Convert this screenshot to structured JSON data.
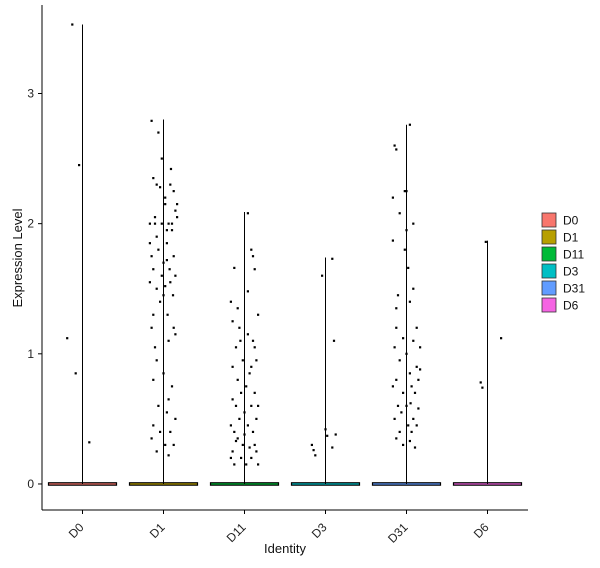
{
  "chart_data": {
    "type": "violin",
    "xlabel": "Identity",
    "ylabel": "Expression Level",
    "categories": [
      "D0",
      "D1",
      "D11",
      "D3",
      "D31",
      "D6"
    ],
    "yticks": [
      0,
      1,
      2,
      3
    ],
    "ylim": [
      -0.2,
      3.68
    ],
    "legend_position": "right",
    "legend": [
      {
        "label": "D0",
        "color": "#F8766D"
      },
      {
        "label": "D1",
        "color": "#B79F00"
      },
      {
        "label": "D11",
        "color": "#00BA38"
      },
      {
        "label": "D3",
        "color": "#00BFC4"
      },
      {
        "label": "D31",
        "color": "#619CFF"
      },
      {
        "label": "D6",
        "color": "#F564E3"
      }
    ],
    "series": [
      {
        "category": "D0",
        "max": 3.53,
        "points": [
          [
            -0.3,
            3.53
          ],
          [
            -0.1,
            2.45
          ],
          [
            -0.45,
            1.12
          ],
          [
            -0.2,
            0.85
          ],
          [
            0.2,
            0.32
          ]
        ]
      },
      {
        "category": "D1",
        "max": 2.8,
        "points": [
          [
            -0.35,
            2.79
          ],
          [
            -0.3,
            2.35
          ],
          [
            -0.2,
            2.3
          ],
          [
            -0.1,
            2.28
          ],
          [
            0.05,
            2.15
          ],
          [
            0.2,
            2.3
          ],
          [
            0.3,
            2.25
          ],
          [
            0.35,
            2.1
          ],
          [
            0.15,
            2.0
          ],
          [
            -0.05,
            2.0
          ],
          [
            -0.25,
            2.05
          ],
          [
            -0.4,
            2.0
          ],
          [
            0.4,
            2.05
          ],
          [
            0.25,
            1.95
          ],
          [
            0.1,
            1.85
          ],
          [
            -0.15,
            1.8
          ],
          [
            -0.3,
            1.65
          ],
          [
            0.0,
            1.7
          ],
          [
            0.18,
            1.65
          ],
          [
            0.35,
            1.6
          ],
          [
            -0.4,
            1.55
          ],
          [
            -0.2,
            1.5
          ],
          [
            0.05,
            1.52
          ],
          [
            0.28,
            1.45
          ],
          [
            -0.1,
            1.4
          ],
          [
            0.12,
            1.3
          ],
          [
            -0.35,
            1.2
          ],
          [
            0.3,
            1.2
          ],
          [
            -0.25,
            1.05
          ],
          [
            0.15,
            1.1
          ],
          [
            0.0,
            0.85
          ],
          [
            -0.3,
            0.8
          ],
          [
            0.25,
            0.75
          ],
          [
            -0.15,
            0.6
          ],
          [
            0.1,
            0.55
          ],
          [
            0.35,
            0.5
          ],
          [
            -0.3,
            0.45
          ],
          [
            -0.1,
            0.4
          ],
          [
            0.2,
            0.4
          ],
          [
            0.05,
            0.3
          ],
          [
            -0.35,
            0.35
          ],
          [
            0.3,
            0.3
          ],
          [
            -0.2,
            0.25
          ],
          [
            0.15,
            0.22
          ],
          [
            -0.05,
            2.5
          ],
          [
            0.22,
            2.42
          ],
          [
            -0.15,
            2.7
          ],
          [
            0.05,
            2.2
          ],
          [
            -0.25,
            2.0
          ],
          [
            0.4,
            2.15
          ],
          [
            0.1,
            1.72
          ],
          [
            -0.4,
            1.85
          ],
          [
            0.3,
            1.75
          ],
          [
            -0.05,
            1.6
          ],
          [
            0.2,
            1.55
          ],
          [
            -0.35,
            1.75
          ],
          [
            0.1,
            1.95
          ],
          [
            -0.2,
            1.9
          ],
          [
            0.25,
            2.0
          ],
          [
            0.0,
            1.45
          ],
          [
            -0.3,
            1.3
          ],
          [
            0.35,
            1.15
          ],
          [
            -0.2,
            0.95
          ],
          [
            0.15,
            0.65
          ]
        ]
      },
      {
        "category": "D11",
        "max": 2.09,
        "points": [
          [
            0.1,
            2.08
          ],
          [
            0.2,
            1.8
          ],
          [
            0.25,
            1.75
          ],
          [
            0.3,
            1.65
          ],
          [
            -0.3,
            1.66
          ],
          [
            -0.4,
            1.4
          ],
          [
            -0.2,
            1.35
          ],
          [
            -0.35,
            1.25
          ],
          [
            -0.15,
            1.2
          ],
          [
            0.4,
            1.3
          ],
          [
            0.1,
            1.15
          ],
          [
            0.25,
            1.1
          ],
          [
            0.3,
            1.05
          ],
          [
            -0.25,
            1.05
          ],
          [
            -0.05,
            0.95
          ],
          [
            0.35,
            0.95
          ],
          [
            -0.35,
            0.9
          ],
          [
            0.15,
            0.85
          ],
          [
            -0.2,
            0.8
          ],
          [
            0.05,
            0.75
          ],
          [
            -0.1,
            0.7
          ],
          [
            0.3,
            0.7
          ],
          [
            -0.35,
            0.65
          ],
          [
            0.2,
            0.6
          ],
          [
            -0.25,
            0.6
          ],
          [
            0.4,
            0.6
          ],
          [
            0.0,
            0.55
          ],
          [
            -0.15,
            0.5
          ],
          [
            0.35,
            0.5
          ],
          [
            -0.4,
            0.45
          ],
          [
            0.1,
            0.45
          ],
          [
            -0.3,
            0.4
          ],
          [
            0.25,
            0.4
          ],
          [
            0.0,
            0.38
          ],
          [
            -0.2,
            0.35
          ],
          [
            0.3,
            0.3
          ],
          [
            -0.05,
            0.3
          ],
          [
            0.15,
            0.28
          ],
          [
            -0.35,
            0.25
          ],
          [
            0.35,
            0.25
          ],
          [
            -0.1,
            0.2
          ],
          [
            0.2,
            0.2
          ],
          [
            -0.4,
            0.2
          ],
          [
            0.05,
            0.15
          ],
          [
            -0.3,
            0.15
          ],
          [
            0.4,
            0.15
          ],
          [
            0.1,
            1.48
          ],
          [
            -0.12,
            1.1
          ],
          [
            0.2,
            0.9
          ],
          [
            -0.25,
            0.33
          ]
        ]
      },
      {
        "category": "D3",
        "max": 1.74,
        "points": [
          [
            0.2,
            1.73
          ],
          [
            -0.1,
            1.6
          ],
          [
            0.25,
            1.1
          ],
          [
            0.0,
            0.42
          ],
          [
            0.05,
            0.37
          ],
          [
            -0.4,
            0.3
          ],
          [
            -0.35,
            0.26
          ],
          [
            -0.3,
            0.22
          ],
          [
            0.3,
            0.38
          ],
          [
            0.2,
            0.28
          ]
        ]
      },
      {
        "category": "D31",
        "max": 2.76,
        "points": [
          [
            0.1,
            2.76
          ],
          [
            -0.35,
            2.6
          ],
          [
            -0.3,
            2.57
          ],
          [
            -0.05,
            2.25
          ],
          [
            0.0,
            2.25
          ],
          [
            -0.4,
            2.2
          ],
          [
            -0.2,
            2.08
          ],
          [
            0.2,
            2.0
          ],
          [
            0.0,
            1.95
          ],
          [
            -0.4,
            1.87
          ],
          [
            0.05,
            1.66
          ],
          [
            -0.25,
            1.45
          ],
          [
            0.1,
            1.4
          ],
          [
            -0.3,
            1.35
          ],
          [
            0.3,
            1.2
          ],
          [
            -0.1,
            1.12
          ],
          [
            0.2,
            1.1
          ],
          [
            -0.35,
            1.05
          ],
          [
            0.4,
            1.05
          ],
          [
            0.0,
            1.0
          ],
          [
            -0.2,
            0.95
          ],
          [
            0.3,
            0.9
          ],
          [
            0.1,
            0.85
          ],
          [
            -0.3,
            0.8
          ],
          [
            0.35,
            0.8
          ],
          [
            -0.4,
            0.75
          ],
          [
            0.15,
            0.75
          ],
          [
            -0.1,
            0.7
          ],
          [
            0.25,
            0.7
          ],
          [
            0.0,
            0.6
          ],
          [
            -0.25,
            0.6
          ],
          [
            0.35,
            0.58
          ],
          [
            -0.15,
            0.55
          ],
          [
            0.2,
            0.5
          ],
          [
            -0.35,
            0.5
          ],
          [
            0.05,
            0.45
          ],
          [
            0.3,
            0.45
          ],
          [
            -0.2,
            0.4
          ],
          [
            0.15,
            0.4
          ],
          [
            -0.3,
            0.35
          ],
          [
            0.1,
            0.33
          ],
          [
            -0.1,
            0.3
          ],
          [
            0.25,
            0.28
          ],
          [
            -0.05,
            1.8
          ],
          [
            0.2,
            1.5
          ],
          [
            0.4,
            0.88
          ],
          [
            -0.3,
            1.2
          ],
          [
            0.12,
            0.62
          ]
        ]
      },
      {
        "category": "D6",
        "max": 1.87,
        "points": [
          [
            -0.05,
            1.86
          ],
          [
            0.4,
            1.12
          ],
          [
            -0.2,
            0.78
          ],
          [
            -0.15,
            0.74
          ]
        ]
      }
    ]
  }
}
